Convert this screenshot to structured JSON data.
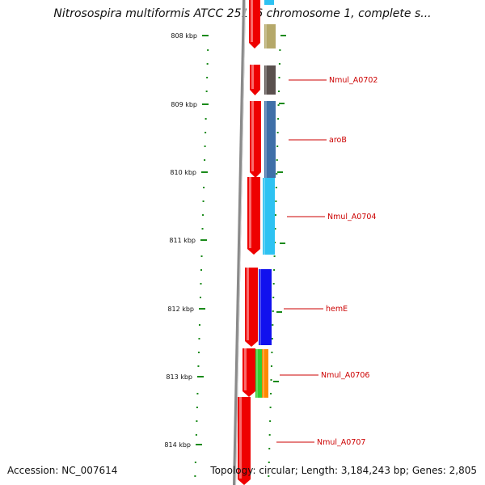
{
  "title": "Nitrosospira multiformis ATCC 25196 chromosome 1, complete s...",
  "accession": "Accession: NC_007614",
  "summary": "Topology: circular; Length: 3,184,243 bp; Genes: 2,805",
  "colors": {
    "cds_red": "#ee0000",
    "label_red": "#cc0000",
    "tick_green": "#1a8a1a",
    "backbone_gray": "#8a8a8a"
  },
  "ruler": [
    {
      "label": "808 kbp"
    },
    {
      "label": "809 kbp"
    },
    {
      "label": "810 kbp"
    },
    {
      "label": "811 kbp"
    },
    {
      "label": "812 kbp"
    },
    {
      "label": "813 kbp"
    },
    {
      "label": "814 kbp"
    }
  ],
  "genes": [
    {
      "name": "",
      "color": "#b5a86a"
    },
    {
      "name": "Nmul_A0702",
      "color": "#5a504e"
    },
    {
      "name": "aroB",
      "color": "#3f6fa8"
    },
    {
      "name": "Nmul_A0704",
      "color": "#2ec2f2"
    },
    {
      "name": "hemE",
      "color": "#1111ee"
    },
    {
      "name": "Nmul_A0706",
      "color": "#33cc33",
      "color2": "#ff8800"
    },
    {
      "name": "Nmul_A0707",
      "color": ""
    }
  ]
}
